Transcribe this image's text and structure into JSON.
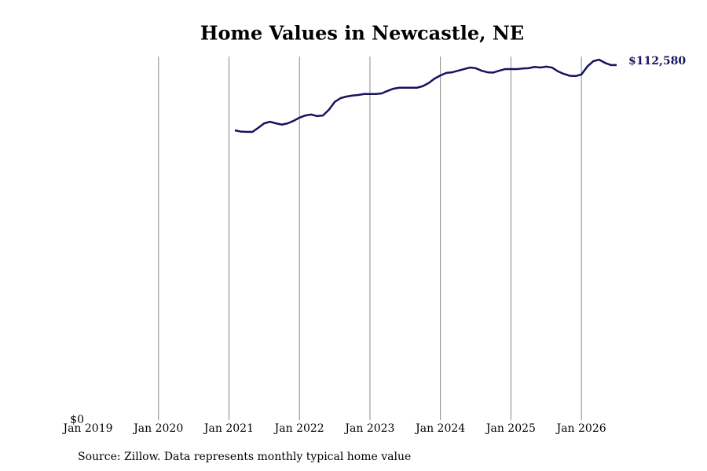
{
  "chart_data": {
    "type": "line",
    "title": "Home Values in Newcastle, NE",
    "source": "Source: Zillow. Data represents monthly typical home value",
    "x": [
      "2021-02",
      "2021-03",
      "2021-04",
      "2021-05",
      "2021-06",
      "2021-07",
      "2021-08",
      "2021-09",
      "2021-10",
      "2021-11",
      "2021-12",
      "2022-01",
      "2022-02",
      "2022-03",
      "2022-04",
      "2022-05",
      "2022-06",
      "2022-07",
      "2022-08",
      "2022-09",
      "2022-10",
      "2022-11",
      "2022-12",
      "2023-01",
      "2023-02",
      "2023-03",
      "2023-04",
      "2023-05",
      "2023-06",
      "2023-07",
      "2023-08",
      "2023-09",
      "2023-10",
      "2023-11",
      "2023-12",
      "2024-01",
      "2024-02",
      "2024-03",
      "2024-04",
      "2024-05",
      "2024-06",
      "2024-07",
      "2024-08",
      "2024-09",
      "2024-10",
      "2024-11",
      "2024-12",
      "2025-01",
      "2025-02",
      "2025-03",
      "2025-04",
      "2025-05",
      "2025-06",
      "2025-07",
      "2025-08",
      "2025-09",
      "2025-10",
      "2025-11",
      "2025-12",
      "2026-01",
      "2026-02",
      "2026-03",
      "2026-04",
      "2026-05",
      "2026-06",
      "2026-07"
    ],
    "series": [
      {
        "color": "#15135e",
        "values": [
          91900,
          91500,
          91400,
          91400,
          92700,
          94100,
          94600,
          94100,
          93700,
          94100,
          94900,
          95900,
          96600,
          96900,
          96400,
          96600,
          98400,
          100900,
          102100,
          102600,
          102900,
          103100,
          103400,
          103400,
          103400,
          103600,
          104400,
          105100,
          105400,
          105400,
          105400,
          105400,
          105900,
          106900,
          108300,
          109300,
          110100,
          110300,
          110800,
          111300,
          111800,
          111600,
          110800,
          110300,
          110200,
          110800,
          111300,
          111300,
          111300,
          111500,
          111600,
          112000,
          111800,
          112100,
          111800,
          110600,
          109800,
          109200,
          109100,
          109600,
          112100,
          113800,
          114300,
          113300,
          112600,
          112580
        ],
        "value_labels": [
          null,
          null,
          null,
          null,
          null,
          null,
          null,
          null,
          null,
          null,
          null,
          null,
          null,
          null,
          null,
          null,
          null,
          null,
          null,
          null,
          null,
          null,
          null,
          null,
          null,
          null,
          null,
          null,
          null,
          null,
          null,
          null,
          null,
          null,
          null,
          null,
          null,
          null,
          null,
          null,
          null,
          null,
          null,
          null,
          null,
          null,
          null,
          null,
          null,
          null,
          null,
          null,
          null,
          null,
          null,
          null,
          null,
          null,
          null,
          null,
          null,
          null,
          null,
          null,
          null,
          "$112,580"
        ]
      }
    ],
    "xlim": [
      "2019-01",
      "2026-07"
    ],
    "xticks": [
      {
        "value": "2019-01",
        "label": "Jan 2019"
      },
      {
        "value": "2020-01",
        "label": "Jan 2020"
      },
      {
        "value": "2021-01",
        "label": "Jan 2021"
      },
      {
        "value": "2022-01",
        "label": "Jan 2022"
      },
      {
        "value": "2023-01",
        "label": "Jan 2023"
      },
      {
        "value": "2024-01",
        "label": "Jan 2024"
      },
      {
        "value": "2025-01",
        "label": "Jan 2025"
      },
      {
        "value": "2026-01",
        "label": "Jan 2026"
      }
    ],
    "ylim": [
      0,
      115300
    ],
    "yticks": [
      {
        "value": 0,
        "label": "$0"
      }
    ],
    "grid": "x"
  }
}
